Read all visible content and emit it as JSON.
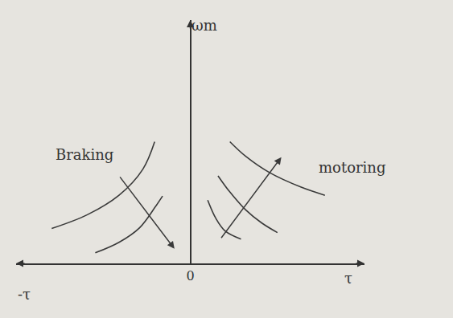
{
  "chart_data": {
    "type": "line",
    "xlim": [
      -11,
      11
    ],
    "ylim": [
      0,
      15
    ],
    "xticks": [
      0
    ],
    "tick_labels": "x",
    "grid": false,
    "series": [
      {
        "type": "line",
        "color": "#3a3a3a",
        "x": [
          2.5,
          3.5,
          5,
          7,
          8.5
        ],
        "values": [
          7.5,
          6.6,
          5.6,
          4.7,
          4.2
        ]
      },
      {
        "type": "line",
        "color": "#3a3a3a",
        "x": [
          1.75,
          2.5,
          3.5,
          4.5,
          5.5
        ],
        "values": [
          5.4,
          4.4,
          3.3,
          2.5,
          1.9
        ]
      },
      {
        "type": "line",
        "color": "#3a3a3a",
        "x": [
          1.1,
          1.6,
          2.2,
          3.2
        ],
        "values": [
          3.9,
          2.8,
          2.0,
          1.5
        ]
      },
      {
        "type": "line",
        "color": "#3a3a3a",
        "x": [
          -8.75,
          -6.5,
          -4.5,
          -3,
          -2.25
        ],
        "values": [
          2.15,
          3.0,
          4.2,
          5.8,
          7.5
        ]
      },
      {
        "type": "line",
        "color": "#3a3a3a",
        "x": [
          -6,
          -4.5,
          -3.2,
          -2.2,
          -1.75
        ],
        "values": [
          0.65,
          1.3,
          2.2,
          3.5,
          4.15
        ]
      },
      {
        "type": "arrow",
        "color": "#3a3a3a",
        "x": [
          1.9,
          5.75
        ],
        "values": [
          1.5,
          6.55
        ]
      },
      {
        "type": "arrow",
        "color": "#3a3a3a",
        "x": [
          -4.5,
          -1
        ],
        "values": [
          5.4,
          0.9
        ]
      }
    ],
    "annotations": [
      {
        "text": "Braking",
        "x": -6.7,
        "y": 6.7
      },
      {
        "text": "motoring",
        "x": 10.2,
        "y": 5.9
      },
      {
        "text": "ωm",
        "x": 0.9,
        "y": 14.7
      },
      {
        "text": "τ",
        "x": 10,
        "y": 0,
        "below": true
      },
      {
        "text": "-τ",
        "x": -10.5,
        "y": 0,
        "below": true
      }
    ]
  }
}
